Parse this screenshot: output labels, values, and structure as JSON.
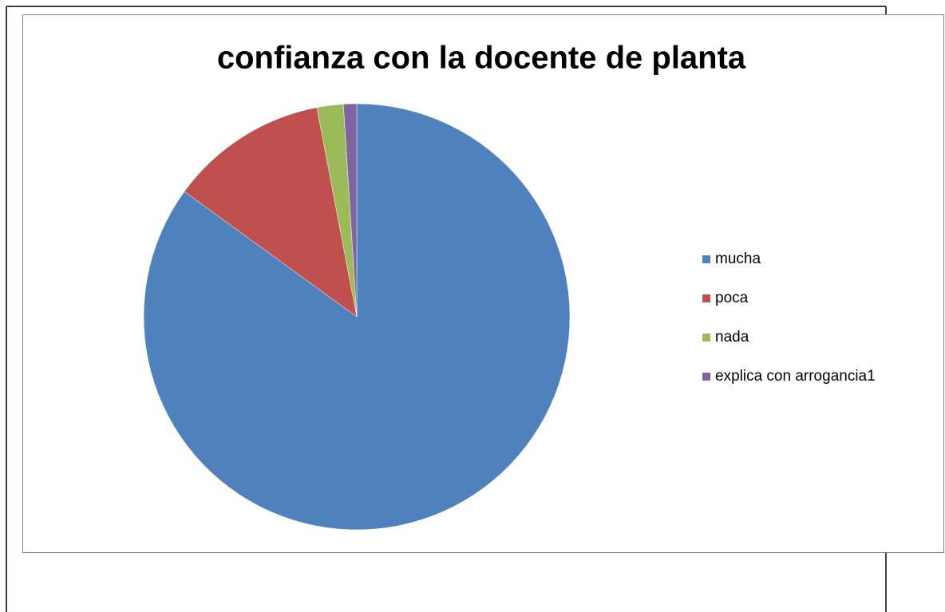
{
  "chart_data": {
    "type": "pie",
    "title": "confianza con la docente de planta",
    "categories": [
      "mucha",
      "poca",
      "nada",
      "explica con arrogancia1"
    ],
    "values": [
      85,
      12,
      2,
      1
    ],
    "colors": [
      "#4f81bd",
      "#c0504d",
      "#9bbb59",
      "#8064a2"
    ],
    "legend": "right"
  }
}
